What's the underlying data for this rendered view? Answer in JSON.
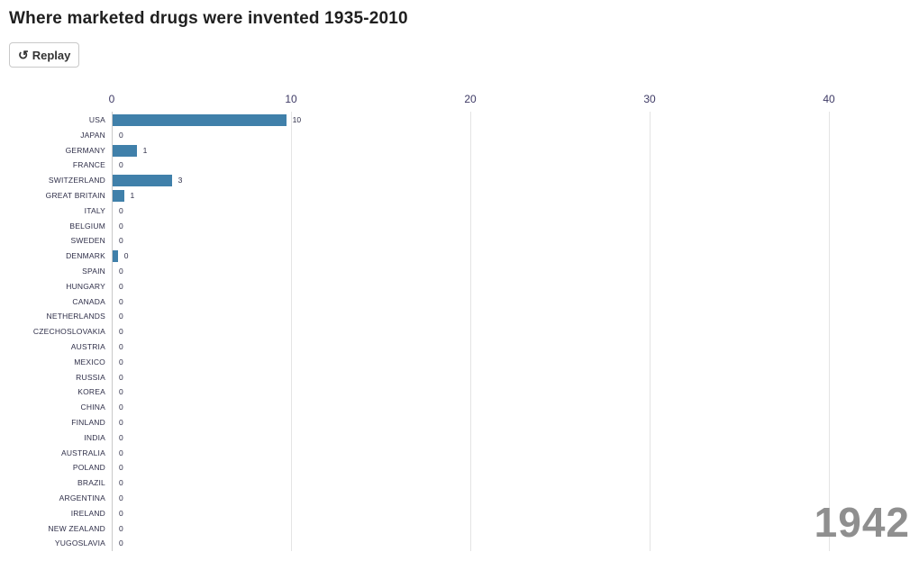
{
  "header": {
    "title": "Where marketed drugs were invented 1935-2010"
  },
  "toolbar": {
    "replay_label": "Replay",
    "replay_icon": "↺"
  },
  "colors": {
    "bar": "#4080aa",
    "year_text": "#8f8f8f",
    "axis_text": "#3e3a65",
    "label_text": "#2f2f49",
    "gridline": "#e4e4e4",
    "zero_line": "#c9c9c9"
  },
  "chart_data": {
    "type": "bar",
    "orientation": "horizontal",
    "title": "Where marketed drugs were invented 1935-2010",
    "xlabel": "",
    "ylabel": "",
    "xlim": [
      0,
      44.5
    ],
    "ticks": [
      0,
      10,
      20,
      30,
      40
    ],
    "grid": true,
    "legend": "none",
    "year_annotation": "1942",
    "rows": [
      {
        "label": "USA",
        "value": 10,
        "bar_units": 9.68
      },
      {
        "label": "JAPAN",
        "value": 0,
        "bar_units": 0
      },
      {
        "label": "GERMANY",
        "value": 1,
        "bar_units": 1.34
      },
      {
        "label": "FRANCE",
        "value": 0,
        "bar_units": 0
      },
      {
        "label": "SWITZERLAND",
        "value": 3,
        "bar_units": 3.3
      },
      {
        "label": "GREAT BRITAIN",
        "value": 1,
        "bar_units": 0.63
      },
      {
        "label": "ITALY",
        "value": 0,
        "bar_units": 0
      },
      {
        "label": "BELGIUM",
        "value": 0,
        "bar_units": 0
      },
      {
        "label": "SWEDEN",
        "value": 0,
        "bar_units": 0
      },
      {
        "label": "DENMARK",
        "value": 0,
        "bar_units": 0.29
      },
      {
        "label": "SPAIN",
        "value": 0,
        "bar_units": 0
      },
      {
        "label": "HUNGARY",
        "value": 0,
        "bar_units": 0
      },
      {
        "label": "CANADA",
        "value": 0,
        "bar_units": 0
      },
      {
        "label": "NETHERLANDS",
        "value": 0,
        "bar_units": 0
      },
      {
        "label": "CZECHOSLOVAKIA",
        "value": 0,
        "bar_units": 0
      },
      {
        "label": "AUSTRIA",
        "value": 0,
        "bar_units": 0
      },
      {
        "label": "MEXICO",
        "value": 0,
        "bar_units": 0
      },
      {
        "label": "RUSSIA",
        "value": 0,
        "bar_units": 0
      },
      {
        "label": "KOREA",
        "value": 0,
        "bar_units": 0
      },
      {
        "label": "CHINA",
        "value": 0,
        "bar_units": 0
      },
      {
        "label": "FINLAND",
        "value": 0,
        "bar_units": 0
      },
      {
        "label": "INDIA",
        "value": 0,
        "bar_units": 0
      },
      {
        "label": "AUSTRALIA",
        "value": 0,
        "bar_units": 0
      },
      {
        "label": "POLAND",
        "value": 0,
        "bar_units": 0
      },
      {
        "label": "BRAZIL",
        "value": 0,
        "bar_units": 0
      },
      {
        "label": "ARGENTINA",
        "value": 0,
        "bar_units": 0
      },
      {
        "label": "IRELAND",
        "value": 0,
        "bar_units": 0
      },
      {
        "label": "NEW ZEALAND",
        "value": 0,
        "bar_units": 0
      },
      {
        "label": "YUGOSLAVIA",
        "value": 0,
        "bar_units": 0
      }
    ]
  }
}
